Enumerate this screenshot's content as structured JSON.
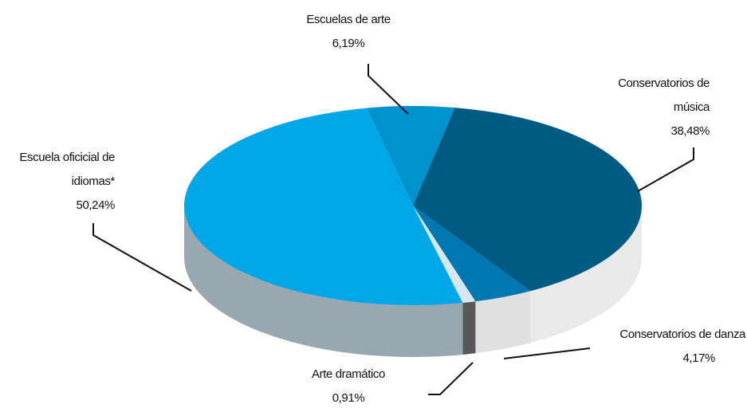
{
  "chart_data": {
    "type": "pie",
    "categories": [
      "Escuelas de arte",
      "Conservatorios de música",
      "Conservatorios de danza",
      "Arte dramático",
      "Escuela oficicial de idiomas*"
    ],
    "values": [
      6.19,
      38.48,
      4.17,
      0.91,
      50.24
    ],
    "value_labels": [
      "6,19%",
      "38,48%",
      "4,17%",
      "0,91%",
      "50,24%"
    ],
    "colors": [
      "#0091cf",
      "#005b83",
      "#0077b1",
      "#d6e7f1",
      "#00a7e6"
    ],
    "side_colors": [
      "#0078ad",
      "#e9e9e9",
      "#e0e0e0",
      "#585858",
      "#98a7b0"
    ]
  }
}
